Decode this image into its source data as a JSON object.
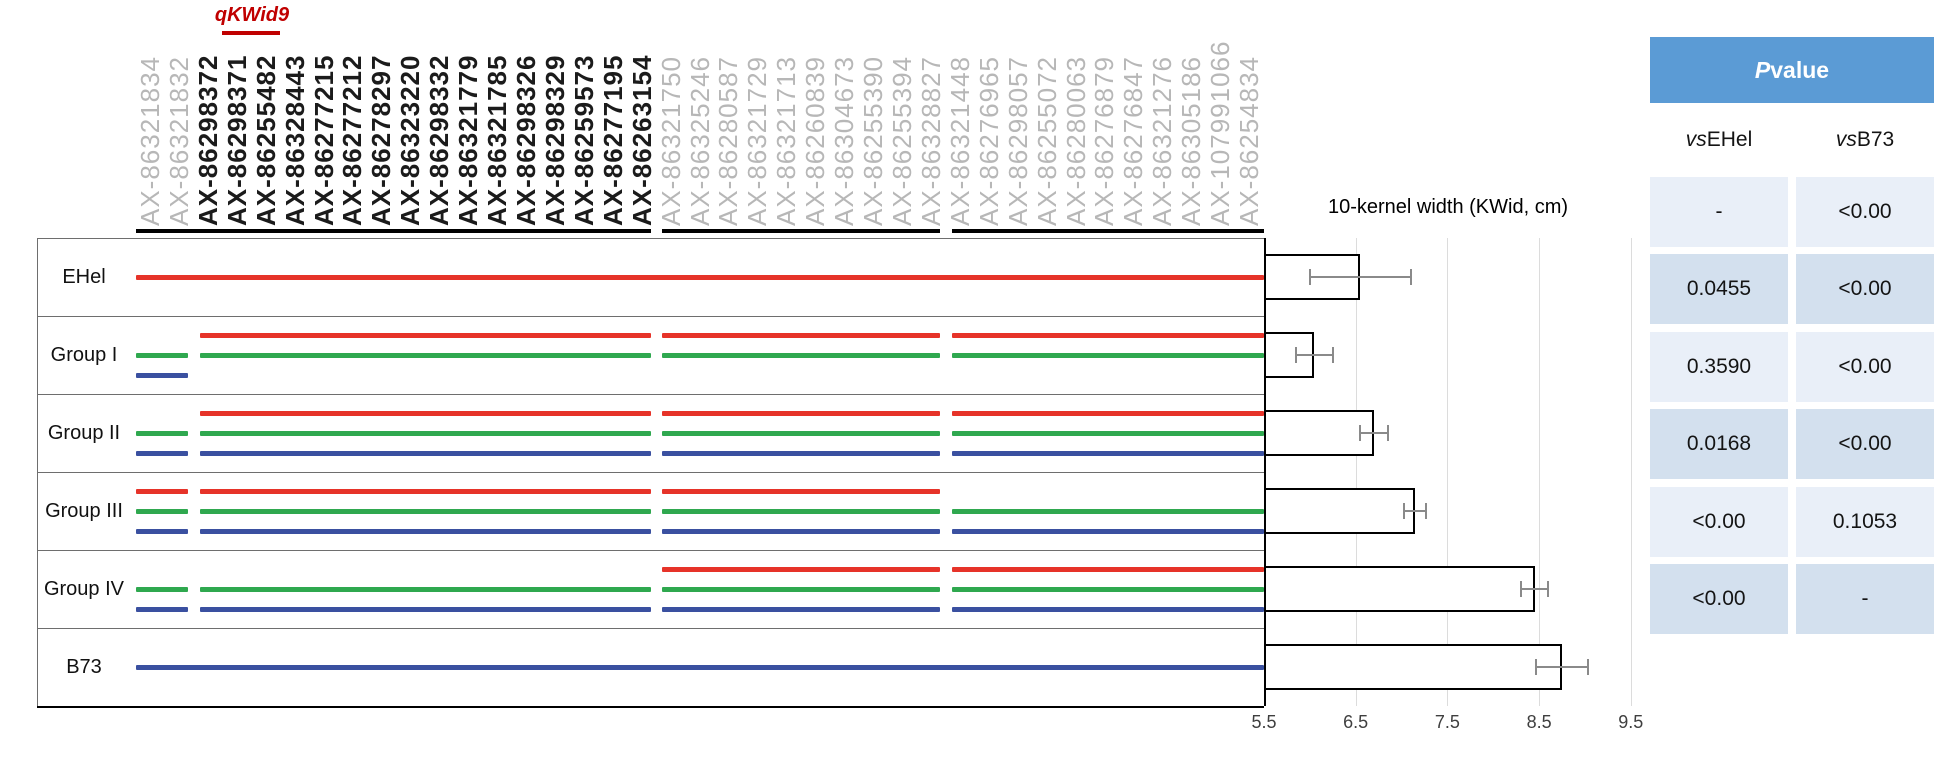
{
  "qtl": {
    "label": "qKWid9",
    "color": "#c00000"
  },
  "markers": [
    {
      "name": "AX-86321834",
      "emph": false
    },
    {
      "name": "AX-86321832",
      "emph": false
    },
    {
      "name": "AX-86298372",
      "emph": true
    },
    {
      "name": "AX-86298371",
      "emph": true
    },
    {
      "name": "AX-86255482",
      "emph": true
    },
    {
      "name": "AX-86328443",
      "emph": true
    },
    {
      "name": "AX-86277215",
      "emph": true
    },
    {
      "name": "AX-86277212",
      "emph": true
    },
    {
      "name": "AX-86278297",
      "emph": true
    },
    {
      "name": "AX-86323220",
      "emph": true
    },
    {
      "name": "AX-86298332",
      "emph": true
    },
    {
      "name": "AX-86321779",
      "emph": true
    },
    {
      "name": "AX-86321785",
      "emph": true
    },
    {
      "name": "AX-86298326",
      "emph": true
    },
    {
      "name": "AX-86298329",
      "emph": true
    },
    {
      "name": "AX-86259573",
      "emph": true
    },
    {
      "name": "AX-86277195",
      "emph": true
    },
    {
      "name": "AX-86263154",
      "emph": true
    },
    {
      "name": "AX-86321750",
      "emph": false
    },
    {
      "name": "AX-86325246",
      "emph": false
    },
    {
      "name": "AX-86280587",
      "emph": false
    },
    {
      "name": "AX-86321729",
      "emph": false
    },
    {
      "name": "AX-86321713",
      "emph": false
    },
    {
      "name": "AX-86260839",
      "emph": false
    },
    {
      "name": "AX-86304673",
      "emph": false
    },
    {
      "name": "AX-86255390",
      "emph": false
    },
    {
      "name": "AX-86255394",
      "emph": false
    },
    {
      "name": "AX-86328827",
      "emph": false
    },
    {
      "name": "AX-86321448",
      "emph": false
    },
    {
      "name": "AX-86276965",
      "emph": false
    },
    {
      "name": "AX-86298057",
      "emph": false
    },
    {
      "name": "AX-86255072",
      "emph": false
    },
    {
      "name": "AX-86280063",
      "emph": false
    },
    {
      "name": "AX-86276879",
      "emph": false
    },
    {
      "name": "AX-86276847",
      "emph": false
    },
    {
      "name": "AX-86321276",
      "emph": false
    },
    {
      "name": "AX-86305186",
      "emph": false
    },
    {
      "name": "AX-107991066",
      "emph": false
    },
    {
      "name": "AX-86254834",
      "emph": false
    }
  ],
  "overline_segments": [
    [
      0,
      0.4565
    ],
    [
      0.4665,
      0.713
    ],
    [
      0.723,
      1
    ]
  ],
  "line_colors": {
    "red": "#e63329",
    "green": "#2fa84f",
    "blue": "#3a50a0"
  },
  "haplotypes": [
    {
      "label": "EHel",
      "lines": [
        {
          "color": "red",
          "segments": [
            [
              0,
              1
            ]
          ]
        }
      ]
    },
    {
      "label": "Group I",
      "lines": [
        {
          "color": "red",
          "segments": [
            [
              0.0563,
              0.4565
            ],
            [
              0.4665,
              0.713
            ],
            [
              0.723,
              1
            ]
          ]
        },
        {
          "color": "green",
          "segments": [
            [
              0,
              0.0463
            ],
            [
              0.0563,
              0.4565
            ],
            [
              0.4665,
              0.713
            ],
            [
              0.723,
              1
            ]
          ]
        },
        {
          "color": "blue",
          "segments": [
            [
              0,
              0.0463
            ]
          ]
        }
      ]
    },
    {
      "label": "Group II",
      "lines": [
        {
          "color": "red",
          "segments": [
            [
              0.0563,
              0.4565
            ],
            [
              0.4665,
              0.713
            ],
            [
              0.723,
              1
            ]
          ]
        },
        {
          "color": "green",
          "segments": [
            [
              0,
              0.0463
            ],
            [
              0.0563,
              0.4565
            ],
            [
              0.4665,
              0.713
            ],
            [
              0.723,
              1
            ]
          ]
        },
        {
          "color": "blue",
          "segments": [
            [
              0,
              0.0463
            ],
            [
              0.0563,
              0.4565
            ],
            [
              0.4665,
              0.713
            ],
            [
              0.723,
              1
            ]
          ]
        }
      ]
    },
    {
      "label": "Group III",
      "lines": [
        {
          "color": "red",
          "segments": [
            [
              0,
              0.0463
            ],
            [
              0.0563,
              0.4565
            ],
            [
              0.4665,
              0.713
            ]
          ]
        },
        {
          "color": "green",
          "segments": [
            [
              0,
              0.0463
            ],
            [
              0.0563,
              0.4565
            ],
            [
              0.4665,
              0.713
            ],
            [
              0.723,
              1
            ]
          ]
        },
        {
          "color": "blue",
          "segments": [
            [
              0,
              0.0463
            ],
            [
              0.0563,
              0.4565
            ],
            [
              0.4665,
              0.713
            ],
            [
              0.723,
              1
            ]
          ]
        }
      ]
    },
    {
      "label": "Group IV",
      "lines": [
        {
          "color": "red",
          "segments": [
            [
              0.4665,
              0.713
            ],
            [
              0.723,
              1
            ]
          ]
        },
        {
          "color": "green",
          "segments": [
            [
              0,
              0.0463
            ],
            [
              0.0563,
              0.4565
            ],
            [
              0.4665,
              0.713
            ],
            [
              0.723,
              1
            ]
          ]
        },
        {
          "color": "blue",
          "segments": [
            [
              0,
              0.0463
            ],
            [
              0.0563,
              0.4565
            ],
            [
              0.4665,
              0.713
            ],
            [
              0.723,
              1
            ]
          ]
        }
      ]
    },
    {
      "label": "B73",
      "lines": [
        {
          "color": "blue",
          "segments": [
            [
              0,
              1
            ]
          ]
        }
      ]
    }
  ],
  "chart_data": {
    "type": "bar",
    "orientation": "horizontal",
    "title": "10-kernel width (KWid, cm)",
    "categories": [
      "EHel",
      "Group I",
      "Group II",
      "Group III",
      "Group IV",
      "B73"
    ],
    "values": [
      6.55,
      6.05,
      6.7,
      7.15,
      8.45,
      8.75
    ],
    "errors": [
      0.55,
      0.2,
      0.15,
      0.12,
      0.15,
      0.28
    ],
    "xlim": [
      5.5,
      9.5
    ],
    "xticks": [
      "5.5",
      "6.5",
      "7.5",
      "8.5",
      "9.5"
    ],
    "grid": true,
    "bar_fill": "#ffffff",
    "bar_border": "#000000",
    "legend": "none"
  },
  "p_table": {
    "header_italic": "P",
    "header_rest": " value",
    "header_bg": "#5b9bd5",
    "row_bg_light": "#e9eff8",
    "row_bg_dark": "#d3e0ee",
    "columns": [
      {
        "italic": "vs",
        "rest": " EHel"
      },
      {
        "italic": "vs",
        "rest": " B73"
      }
    ],
    "rows": [
      [
        "-",
        "<0.00"
      ],
      [
        "0.0455",
        "<0.00"
      ],
      [
        "0.3590",
        "<0.00"
      ],
      [
        "0.0168",
        "<0.00"
      ],
      [
        "<0.00",
        "0.1053"
      ],
      [
        "<0.00",
        "-"
      ]
    ]
  }
}
